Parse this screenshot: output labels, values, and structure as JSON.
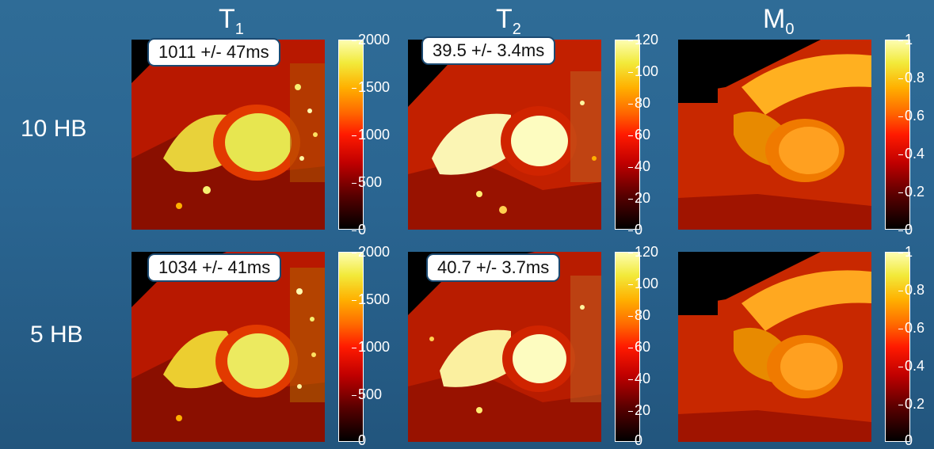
{
  "columns": {
    "t1": {
      "letter": "T",
      "sub": "1"
    },
    "t2": {
      "letter": "T",
      "sub": "2"
    },
    "m0": {
      "letter": "M",
      "sub": "0"
    }
  },
  "rows": {
    "r1": "10 HB",
    "r2": "5 HB"
  },
  "annotations": {
    "t1_r1": "1011 +/- 47ms",
    "t2_r1": "39.5 +/- 3.4ms",
    "t1_r2": "1034 +/- 41ms",
    "t2_r2": "40.7 +/- 3.7ms"
  },
  "colorbars": {
    "t1": [
      "2000",
      "1500",
      "1000",
      "500",
      "0"
    ],
    "t2": [
      "120",
      "100",
      "80",
      "60",
      "40",
      "20",
      "0"
    ],
    "m0": [
      "1",
      "0.8",
      "0.6",
      "0.4",
      "0.2",
      "0"
    ]
  },
  "colormap": "hot"
}
